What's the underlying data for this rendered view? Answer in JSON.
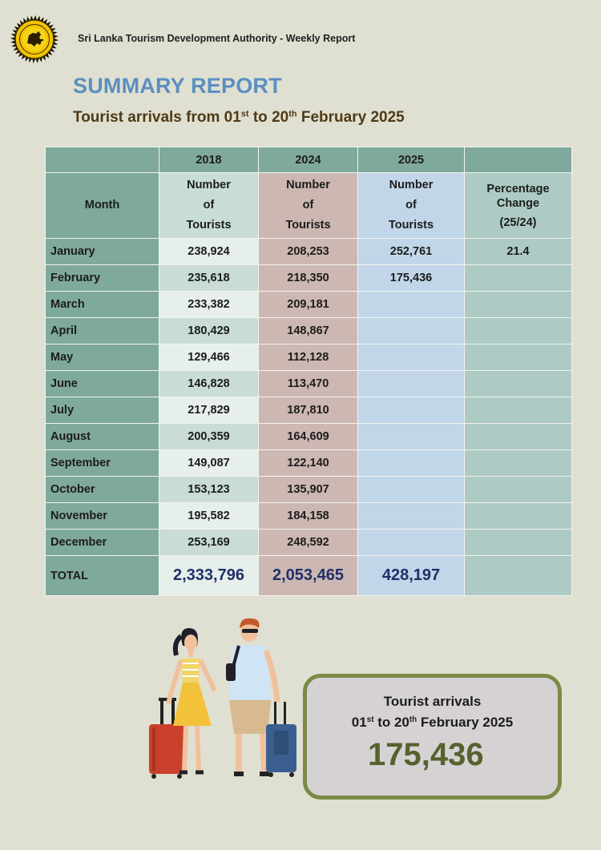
{
  "header": {
    "organization": "Sri Lanka Tourism Development Authority - Weekly Report",
    "title": "SUMMARY REPORT",
    "subtitle": {
      "lead": "Tourist arrivals from 01",
      "sup1": "st",
      "mid": " to 20",
      "sup2": "th",
      "tail": " February 2025"
    }
  },
  "table": {
    "years": [
      "2018",
      "2024",
      "2025"
    ],
    "month_header": "Month",
    "number_header": [
      "Number",
      "of",
      "Tourists"
    ],
    "pct_header": [
      "Percentage",
      "Change",
      "(25/24)"
    ],
    "rows": [
      {
        "month": "January",
        "y2018": "238,924",
        "y2024": "208,253",
        "y2025": "252,761",
        "pct": "21.4"
      },
      {
        "month": "February",
        "y2018": "235,618",
        "y2024": "218,350",
        "y2025": "175,436",
        "pct": ""
      },
      {
        "month": "March",
        "y2018": "233,382",
        "y2024": "209,181",
        "y2025": "",
        "pct": ""
      },
      {
        "month": "April",
        "y2018": "180,429",
        "y2024": "148,867",
        "y2025": "",
        "pct": ""
      },
      {
        "month": "May",
        "y2018": "129,466",
        "y2024": "112,128",
        "y2025": "",
        "pct": ""
      },
      {
        "month": "June",
        "y2018": "146,828",
        "y2024": "113,470",
        "y2025": "",
        "pct": ""
      },
      {
        "month": "July",
        "y2018": "217,829",
        "y2024": "187,810",
        "y2025": "",
        "pct": ""
      },
      {
        "month": "August",
        "y2018": "200,359",
        "y2024": "164,609",
        "y2025": "",
        "pct": ""
      },
      {
        "month": "September",
        "y2018": "149,087",
        "y2024": "122,140",
        "y2025": "",
        "pct": ""
      },
      {
        "month": "October",
        "y2018": "153,123",
        "y2024": "135,907",
        "y2025": "",
        "pct": ""
      },
      {
        "month": "November",
        "y2018": "195,582",
        "y2024": "184,158",
        "y2025": "",
        "pct": ""
      },
      {
        "month": "December",
        "y2018": "253,169",
        "y2024": "248,592",
        "y2025": "",
        "pct": ""
      }
    ],
    "total": {
      "label": "TOTAL",
      "y2018": "2,333,796",
      "y2024": "2,053,465",
      "y2025": "428,197",
      "pct": ""
    }
  },
  "summary_box": {
    "title": "Tourist arrivals",
    "sub": {
      "lead": "01",
      "sup1": "st",
      "mid": " to 20",
      "sup2": "th",
      "tail": " February 2025"
    },
    "value": "175,436"
  },
  "icons": {
    "emblem": "sri-lanka-lion-emblem-icon",
    "illustration": "travelers-with-suitcases-icon"
  },
  "colors": {
    "title": "#5b8fc0",
    "subtitle": "#4f3a14",
    "month_col": "#7fa99c",
    "col_2018": "#c9ddd6",
    "col_2024": "#cdb7b2",
    "col_2025": "#c1d6e8",
    "col_pct": "#adcbc4",
    "box_border": "#7b8a44",
    "box_value": "#55622d"
  }
}
